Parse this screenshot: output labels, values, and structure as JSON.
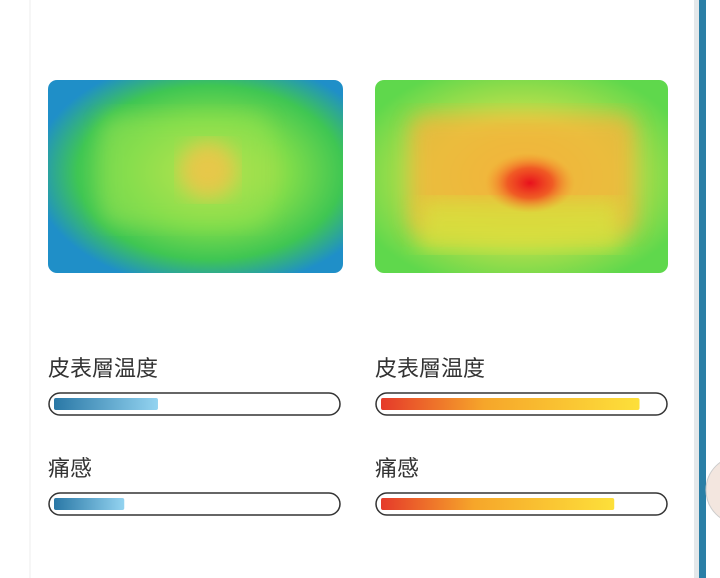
{
  "panels": [
    {
      "metrics": [
        {
          "label": "皮表層温度",
          "level": 37
        },
        {
          "label": "痛感",
          "level": 25
        }
      ]
    },
    {
      "metrics": [
        {
          "label": "皮表層温度",
          "level": 92
        },
        {
          "label": "痛感",
          "level": 83
        }
      ]
    }
  ]
}
